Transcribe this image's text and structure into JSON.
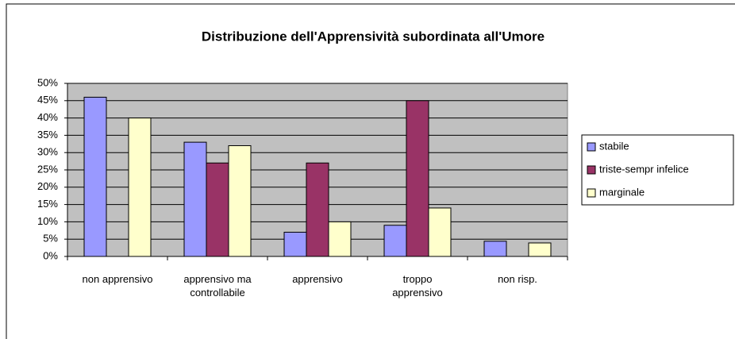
{
  "chart_data": {
    "type": "bar",
    "title": "Distribuzione dell'Apprensività subordinata  all'Umore",
    "categories": [
      "non apprensivo",
      "apprensivo ma controllabile",
      "apprensivo",
      "troppo apprensivo",
      "non risp."
    ],
    "series": [
      {
        "name": "stabile",
        "color": "#9999ff",
        "values": [
          46,
          33,
          7,
          9,
          4.4
        ]
      },
      {
        "name": "triste-sempr infelice",
        "color": "#993366",
        "values": [
          0,
          27,
          27,
          45,
          0
        ]
      },
      {
        "name": "marginale",
        "color": "#ffffcc",
        "values": [
          40,
          32,
          10,
          14,
          3.9
        ]
      }
    ],
    "ylim": [
      0,
      50
    ],
    "yticks": [
      {
        "value": 0,
        "label": "0%"
      },
      {
        "value": 5,
        "label": "5%"
      },
      {
        "value": 10,
        "label": "10%"
      },
      {
        "value": 15,
        "label": "15%"
      },
      {
        "value": 20,
        "label": "20%"
      },
      {
        "value": 25,
        "label": "25%"
      },
      {
        "value": 30,
        "label": "30%"
      },
      {
        "value": 35,
        "label": "35%"
      },
      {
        "value": 40,
        "label": "40%"
      },
      {
        "value": 45,
        "label": "45%"
      },
      {
        "value": 50,
        "label": "50%"
      }
    ],
    "grid": true,
    "legend": "right"
  }
}
